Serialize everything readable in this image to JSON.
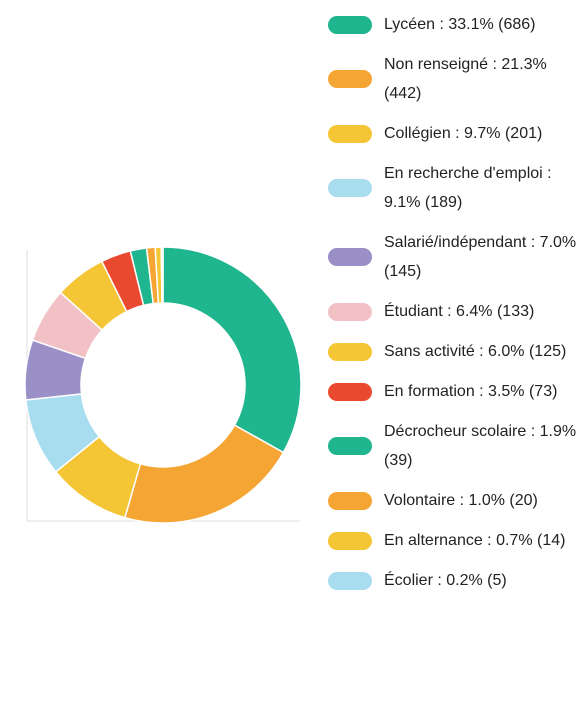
{
  "chart_data": {
    "type": "donut",
    "categories": [
      "Lycéen : 33.1% (686)",
      "Non renseigné : 21.3% (442)",
      "Collégien : 9.7% (201)",
      "En recherche d'emploi : 9.1% (189)",
      "Salarié/indépendant : 7.0% (145)",
      "Étudiant : 6.4% (133)",
      "Sans activité : 6.0% (125)",
      "En formation : 3.5% (73)",
      "Décrocheur scolaire : 1.9% (39)",
      "Volontaire : 1.0% (20)",
      "En alternance : 0.7% (14)",
      "Écolier : 0.2% (5)"
    ],
    "values": [
      33.1,
      21.3,
      9.7,
      9.1,
      7.0,
      6.4,
      6.0,
      3.5,
      1.9,
      1.0,
      0.7,
      0.2
    ],
    "colors": [
      "#1fb58f",
      "#f5a533",
      "#f4c534",
      "#a8dcef",
      "#9b8fc8",
      "#f2c1c6",
      "#f4c534",
      "#e8492f",
      "#1fb58f",
      "#f5a533",
      "#f4c534",
      "#a8dcef"
    ],
    "legend": "right"
  }
}
